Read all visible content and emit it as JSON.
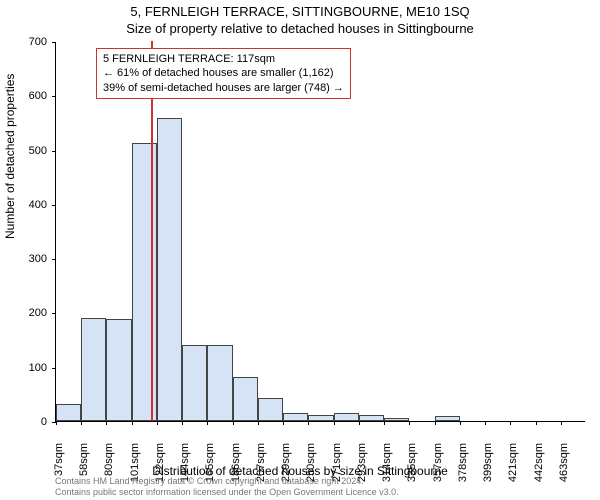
{
  "title_line1": "5, FERNLEIGH TERRACE, SITTINGBOURNE, ME10 1SQ",
  "title_line2": "Size of property relative to detached houses in Sittingbourne",
  "y_axis_title": "Number of detached properties",
  "x_axis_title": "Distribution of detached houses by size in Sittingbourne",
  "footer_line1": "Contains HM Land Registry data © Crown copyright and database right 2024.",
  "footer_line2": "Contains public sector information licensed under the Open Government Licence v3.0.",
  "chart": {
    "type": "histogram",
    "ylim": [
      0,
      700
    ],
    "ytick_step": 100,
    "yticks": [
      0,
      100,
      200,
      300,
      400,
      500,
      600,
      700
    ],
    "xticks": [
      "37sqm",
      "58sqm",
      "80sqm",
      "101sqm",
      "122sqm",
      "144sqm",
      "165sqm",
      "186sqm",
      "207sqm",
      "229sqm",
      "250sqm",
      "271sqm",
      "293sqm",
      "314sqm",
      "335sqm",
      "357sqm",
      "378sqm",
      "399sqm",
      "421sqm",
      "442sqm",
      "463sqm"
    ],
    "values": [
      32,
      190,
      188,
      512,
      558,
      140,
      140,
      82,
      42,
      15,
      12,
      15,
      12,
      6,
      0,
      10,
      0,
      0,
      0,
      0,
      0
    ],
    "bar_fill": "#d6e3f5",
    "bar_border": "#444444",
    "axis_color": "#000000",
    "background_color": "#ffffff",
    "highlight_line_color": "#cc3333",
    "highlight_position_sqm": 117,
    "tick_fontsize": 11,
    "title_fontsize": 13,
    "axis_title_fontsize": 12
  },
  "annotation": {
    "line1": "5 FERNLEIGH TERRACE: 117sqm",
    "line2": "← 61% of detached houses are smaller (1,162)",
    "line3": "39% of semi-detached houses are larger (748) →",
    "border_color": "#cc3333",
    "fontsize": 11
  }
}
